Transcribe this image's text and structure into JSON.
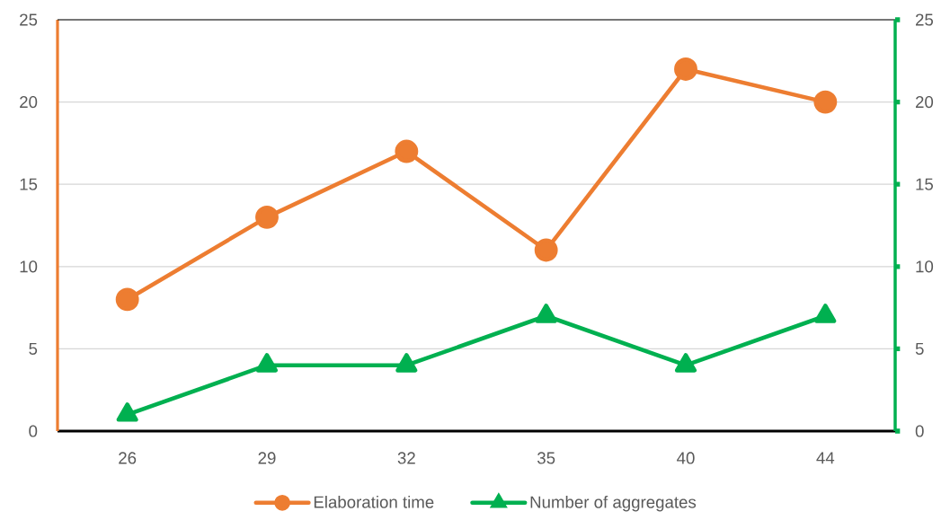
{
  "chart_data": {
    "type": "line",
    "categories": [
      "26",
      "29",
      "32",
      "35",
      "40",
      "44"
    ],
    "series": [
      {
        "name": "Elaboration time",
        "color": "#ed7d31",
        "values": [
          8,
          13,
          17,
          11,
          22,
          20
        ],
        "marker": "circle"
      },
      {
        "name": "Number of aggregates",
        "color": "#00b050",
        "values": [
          1,
          4,
          4,
          7,
          4,
          7
        ],
        "marker": "triangle",
        "axis": "y2"
      }
    ],
    "ylim": [
      0,
      25
    ],
    "yticks": [
      0,
      5,
      10,
      15,
      20,
      25
    ],
    "y2lim": [
      0,
      25
    ],
    "y2ticks": [
      0,
      5,
      10,
      15,
      20,
      25
    ],
    "grid": "y",
    "legend": "bottom"
  }
}
